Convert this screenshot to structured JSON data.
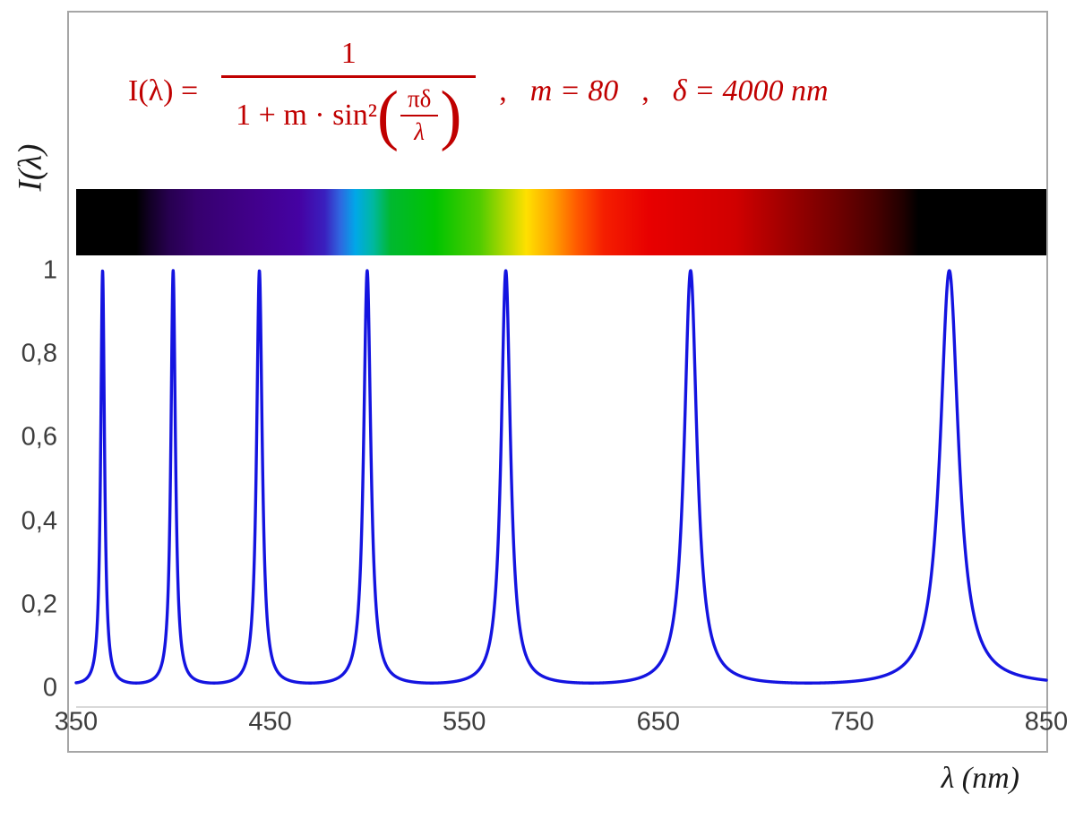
{
  "figure": {
    "ylabel": "I(λ)",
    "xlabel": "λ  (nm)",
    "formula": {
      "color": "#c00000",
      "lhs": "I(λ) =",
      "numerator": "1",
      "den_prefix": "1 + m · sin²",
      "open_paren": "(",
      "inner_numerator": "πδ",
      "inner_denominator": "λ",
      "close_paren": ")",
      "separator1": ",",
      "param_m": "m = 80",
      "separator2": ",",
      "param_delta": "δ = 4000 nm"
    }
  },
  "chart_data": {
    "type": "line",
    "title": "",
    "annotation": "I(λ) = 1 / (1 + m·sin²(πδ/λ)) ,  m = 80 ,  δ = 4000 nm",
    "function": "I(lambda) = 1 / (1 + m * sin(pi*delta/lambda)^2)",
    "parameters": {
      "m": 80,
      "delta_nm": 4000
    },
    "x_range": [
      350,
      850
    ],
    "y_range": [
      0,
      1
    ],
    "x_ticks": [
      "350",
      "450",
      "550",
      "650",
      "750",
      "850"
    ],
    "x_tick_values": [
      350,
      450,
      550,
      650,
      750,
      850
    ],
    "y_ticks": [
      "1",
      "0,8",
      "0,6",
      "0,4",
      "0,2",
      "0"
    ],
    "y_tick_values": [
      1,
      0.8,
      0.6,
      0.4,
      0.2,
      0
    ],
    "peaks_nm": [
      363.64,
      400,
      444.44,
      500,
      571.43,
      666.67,
      800
    ],
    "peak_value": 1,
    "baseline_value": 0.0123,
    "sample_step_nm": 0.1,
    "line_color": "#1414e0",
    "grid": false,
    "legend": null,
    "xlabel": "λ  (nm)",
    "ylabel": "I(λ)"
  },
  "spectrum_bar": {
    "x_range_nm": [
      350,
      850
    ],
    "stops": [
      {
        "wavelength_nm": 350,
        "color": "#000000"
      },
      {
        "wavelength_nm": 381,
        "color": "#000000"
      },
      {
        "wavelength_nm": 388,
        "color": "#120025"
      },
      {
        "wavelength_nm": 398,
        "color": "#270050"
      },
      {
        "wavelength_nm": 412,
        "color": "#36006e"
      },
      {
        "wavelength_nm": 440,
        "color": "#41008a"
      },
      {
        "wavelength_nm": 465,
        "color": "#4502a3"
      },
      {
        "wavelength_nm": 478,
        "color": "#3a1fbe"
      },
      {
        "wavelength_nm": 486,
        "color": "#2f66e0"
      },
      {
        "wavelength_nm": 494,
        "color": "#00a8e8"
      },
      {
        "wavelength_nm": 503,
        "color": "#00b8a0"
      },
      {
        "wavelength_nm": 512,
        "color": "#00b830"
      },
      {
        "wavelength_nm": 535,
        "color": "#00c400"
      },
      {
        "wavelength_nm": 558,
        "color": "#50cc00"
      },
      {
        "wavelength_nm": 572,
        "color": "#b8d800"
      },
      {
        "wavelength_nm": 582,
        "color": "#ffe000"
      },
      {
        "wavelength_nm": 596,
        "color": "#ffa000"
      },
      {
        "wavelength_nm": 608,
        "color": "#ff5a00"
      },
      {
        "wavelength_nm": 622,
        "color": "#f51e00"
      },
      {
        "wavelength_nm": 645,
        "color": "#e80000"
      },
      {
        "wavelength_nm": 690,
        "color": "#d00000"
      },
      {
        "wavelength_nm": 715,
        "color": "#a00000"
      },
      {
        "wavelength_nm": 742,
        "color": "#700000"
      },
      {
        "wavelength_nm": 762,
        "color": "#480000"
      },
      {
        "wavelength_nm": 776,
        "color": "#200000"
      },
      {
        "wavelength_nm": 784,
        "color": "#000000"
      },
      {
        "wavelength_nm": 850,
        "color": "#000000"
      }
    ]
  },
  "frame": {
    "border_color": "#a6a6a6"
  }
}
